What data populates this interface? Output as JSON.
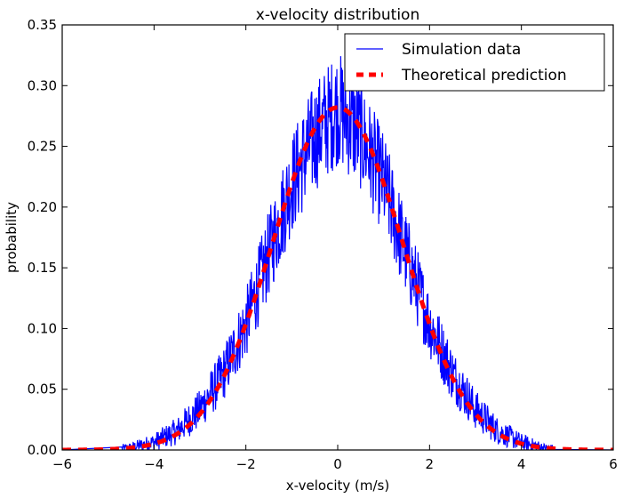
{
  "chart_data": {
    "type": "line",
    "title": "x-velocity distribution",
    "xlabel": "x-velocity (m/s)",
    "ylabel": "probability",
    "xlim": [
      -6,
      6
    ],
    "ylim": [
      0,
      0.35
    ],
    "xticks": [
      -6,
      -4,
      -2,
      0,
      2,
      4,
      6
    ],
    "xtick_labels": [
      "−6",
      "−4",
      "−2",
      "0",
      "2",
      "4",
      "6"
    ],
    "yticks": [
      0.0,
      0.05,
      0.1,
      0.15,
      0.2,
      0.25,
      0.3,
      0.35
    ],
    "ytick_labels": [
      "0.00",
      "0.05",
      "0.10",
      "0.15",
      "0.20",
      "0.25",
      "0.30",
      "0.35"
    ],
    "grid": false,
    "legend": {
      "position": "top-right",
      "entries": [
        {
          "label": "Simulation data",
          "color": "#0000ff",
          "style": "solid"
        },
        {
          "label": "Theoretical prediction",
          "color": "#ff0000",
          "style": "dashed"
        }
      ]
    },
    "series": [
      {
        "name": "Simulation data",
        "color": "#0000ff",
        "style": "solid",
        "description": "noisy histogram of x-velocities, closely following a Gaussian with peak near 0.28 and spikes up to ~0.315 near x=0",
        "x": [
          -6.0,
          -5.0,
          -4.5,
          -4.0,
          -3.5,
          -3.0,
          -2.5,
          -2.0,
          -1.5,
          -1.0,
          -0.5,
          0.0,
          0.5,
          1.0,
          1.5,
          2.0,
          2.5,
          3.0,
          3.5,
          4.0,
          4.5,
          5.0,
          6.0
        ],
        "y": [
          0.0,
          0.0005,
          0.002,
          0.0065,
          0.0156,
          0.0335,
          0.0616,
          0.1037,
          0.1614,
          0.2197,
          0.2581,
          0.282,
          0.2592,
          0.2196,
          0.1595,
          0.1044,
          0.0625,
          0.0332,
          0.0152,
          0.0064,
          0.0017,
          0.0005,
          0.0
        ]
      },
      {
        "name": "Theoretical prediction",
        "color": "#ff0000",
        "style": "dashed",
        "function": "Gaussian, mean 0, sigma 1.414, peak 0.282",
        "mean": 0,
        "sigma": 1.414,
        "peak": 0.282
      }
    ]
  }
}
